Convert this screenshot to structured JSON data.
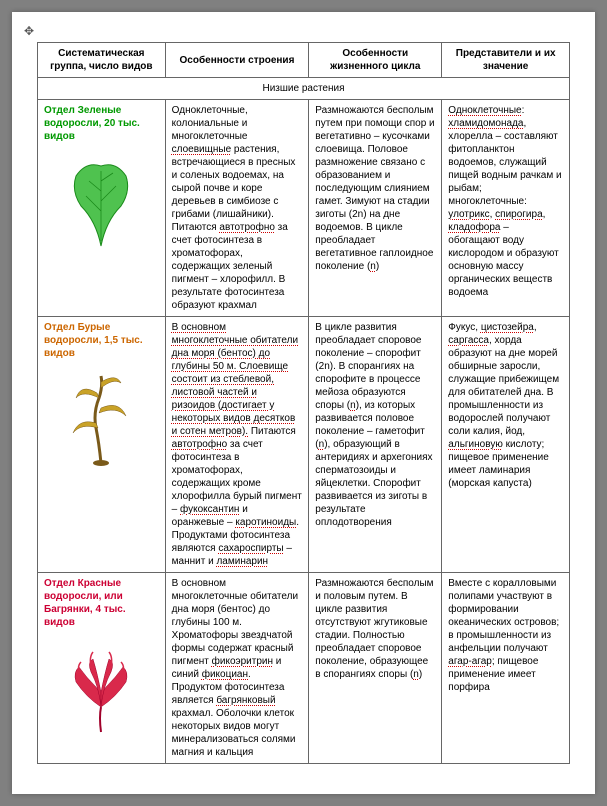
{
  "handle": "✥",
  "headers": {
    "c1": "Систематическая группа, число видов",
    "c2": "Особенности строения",
    "c3": "Особенности жизненного цикла",
    "c4": "Представители и их значение"
  },
  "section": "Низшие растения",
  "rows": [
    {
      "group": "Отдел Зеленые водоросли, 20 тыс. видов",
      "colorClass": "green",
      "svg": {
        "stroke": "#1a8a1a",
        "fill": "#4fc24f",
        "kind": "leaf"
      },
      "structure": "Одноклеточные, колониальные и многоклеточные <span class='u'>слоевищные</span> растения, встречающиеся в пресных и соленых водоемах, на сырой почве и коре деревьев в симбиозе с грибами (лишайники). Питаются <span class='u'>автотрофно</span> за счет фотосинтеза в хроматофорах, содержащих зеленый пигмент – хлорофилл. В результате фотосинтеза образуют крахмал",
      "cycle": "Размножаются бесполым путем при помощи спор и вегетативно – кусочками слоевища. Половое размножение связано с образованием и последующим слиянием гамет. Зимуют на стадии зиготы (2n) на дне водоемов. В цикле преобладает вегетативное гаплоидное поколение (<span class='u'>n</span>)",
      "reps": "<span class='u'>Одноклеточные</span>: <span class='u'>хламидомонада</span>, хлорелла – составляют фитопланктон водоемов, служащий пищей водным рачкам и рыбам; многоклеточные: <span class='u'>улотрикс</span>, <span class='u'>спирогира</span>, <span class='u'>кладофора</span> – обогащают воду кислородом и образуют основную массу органических веществ водоема"
    },
    {
      "group": "Отдел Бурые водоросли, 1,5 тыс. видов",
      "colorClass": "brown",
      "svg": {
        "stroke": "#7a5a1a",
        "fill": "#c9a227",
        "kind": "kelp"
      },
      "structure": "<span class='u'>В основном многоклеточные обитатели дна моря (бентос) до глубины 50 м. Слоевище состоит из стеблевой, листовой частей и ризоидов (достигает у некоторых видов десятков и сотен метров).</span> Питаются <span class='u'>автотрофно</span> за счет фотосинтеза в хроматофорах, содержащих кроме хлорофилла бурый пигмент – <span class='u'>фукоксантин</span> и оранжевые – <span class='u'>каротиноиды</span>. Продуктами фотосинтеза являются <span class='u'>сахароспирты</span> – маннит и <span class='u'>ламинарин</span>",
      "cycle": "В цикле развития преобладает споровое поколение – спорофит (2n). В спорангиях на спорофите в процессе мейоза образуются споры (<span class='u'>n</span>), из которых развивается половое поколение – гаметофит (<span class='u'>n</span>), образующий в антеридиях и архегониях сперматозоиды и яйцеклетки. Спорофит развивается из зиготы в результате оплодотворения",
      "reps": "Фукус, <span class='u'>цистозейра</span>, <span class='u'>саргасса</span>, хорда образуют на дне морей обширные заросли, служащие прибежищем для обитателей дна. В промышленности из водорослей получают соли калия, йод, <span class='u'>альгиновую</span> кислоту; пищевое применение имеет ламинария (морская капуста)"
    },
    {
      "group": "Отдел Красные водоросли, или Багрянки, 4 тыс. видов",
      "colorClass": "red",
      "svg": {
        "stroke": "#a0002a",
        "fill": "#d9294b",
        "kind": "red"
      },
      "structure": "В основном многоклеточные обитатели дна моря (бентос) до глубины 100 м. Хроматофоры звездчатой формы содержат красный пигмент <span class='u'>фикоэритрин</span> и синий <span class='u'>фикоциан</span>. Продуктом фотосинтеза является <span class='u'>багрянковый</span> крахмал. Оболочки клеток некоторых видов могут минерализоваться солями магния и кальция",
      "cycle": "Размножаются бесполым и половым путем. В цикле развития отсутствуют жгутиковые стадии. Полностью преобладает споровое поколение, образующее в спорангиях споры (<span class='u'>n</span>)",
      "reps": "Вместе с коралловыми полипами участвуют в формировании океанических островов; в промышленности из анфельции получают <span class='u'>агар-агар</span>; пищевое применение имеет порфира"
    }
  ]
}
